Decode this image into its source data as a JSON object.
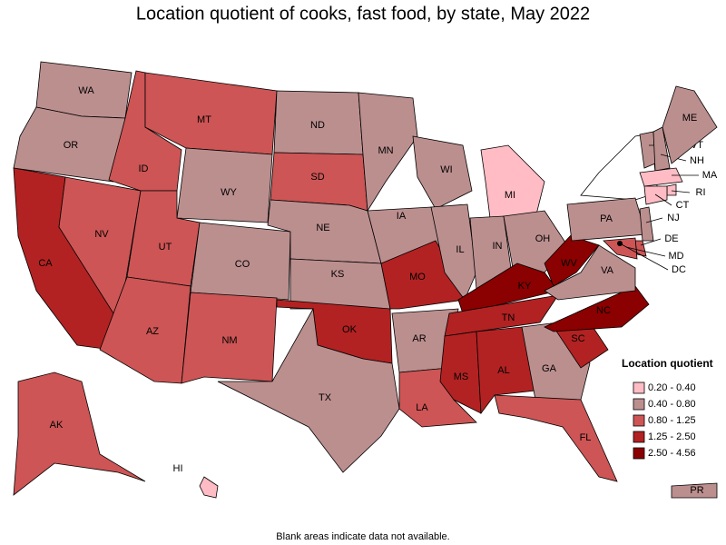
{
  "title": "Location quotient of cooks, fast food, by state, May 2022",
  "note": "Blank areas indicate data not available.",
  "legend": {
    "title": "Location quotient",
    "items": [
      {
        "label": "0.20 - 0.40",
        "color": "#ffbcc4"
      },
      {
        "label": "0.40 - 0.80",
        "color": "#bc8f8f"
      },
      {
        "label": "0.80 - 1.25",
        "color": "#cd5555"
      },
      {
        "label": "1.25 - 2.50",
        "color": "#b22222"
      },
      {
        "label": "2.50 - 4.56",
        "color": "#8b0000"
      }
    ]
  },
  "states": [
    {
      "label": "WA",
      "class": 1
    },
    {
      "label": "OR",
      "class": 1
    },
    {
      "label": "CA",
      "class": 3
    },
    {
      "label": "NV",
      "class": 2
    },
    {
      "label": "ID",
      "class": 2
    },
    {
      "label": "MT",
      "class": 2
    },
    {
      "label": "WY",
      "class": 1
    },
    {
      "label": "UT",
      "class": 2
    },
    {
      "label": "AZ",
      "class": 2
    },
    {
      "label": "CO",
      "class": 1
    },
    {
      "label": "NM",
      "class": 2
    },
    {
      "label": "ND",
      "class": 1
    },
    {
      "label": "SD",
      "class": 2
    },
    {
      "label": "NE",
      "class": 1
    },
    {
      "label": "KS",
      "class": 1
    },
    {
      "label": "OK",
      "class": 3
    },
    {
      "label": "TX",
      "class": 1
    },
    {
      "label": "MN",
      "class": 1
    },
    {
      "label": "IA",
      "class": 1
    },
    {
      "label": "MO",
      "class": 3
    },
    {
      "label": "AR",
      "class": 1
    },
    {
      "label": "LA",
      "class": 2
    },
    {
      "label": "WI",
      "class": 1
    },
    {
      "label": "IL",
      "class": 1
    },
    {
      "label": "MI",
      "class": 0
    },
    {
      "label": "IN",
      "class": 1
    },
    {
      "label": "OH",
      "class": 1
    },
    {
      "label": "KY",
      "class": 4
    },
    {
      "label": "TN",
      "class": 3
    },
    {
      "label": "MS",
      "class": 3
    },
    {
      "label": "AL",
      "class": 3
    },
    {
      "label": "GA",
      "class": 1
    },
    {
      "label": "FL",
      "class": 2
    },
    {
      "label": "SC",
      "class": 3
    },
    {
      "label": "NC",
      "class": 4
    },
    {
      "label": "VA",
      "class": 1
    },
    {
      "label": "WV",
      "class": 4
    },
    {
      "label": "PA",
      "class": 1
    },
    {
      "label": "VT",
      "class": 1
    },
    {
      "label": "NH",
      "class": 1
    },
    {
      "label": "ME",
      "class": 1
    },
    {
      "label": "MA",
      "class": 0
    },
    {
      "label": "RI",
      "class": 0
    },
    {
      "label": "CT",
      "class": 0
    },
    {
      "label": "NJ",
      "class": 1
    },
    {
      "label": "DE",
      "class": 2
    },
    {
      "label": "MD",
      "class": 2
    },
    {
      "label": "DC",
      "class": null
    },
    {
      "label": "AK",
      "class": 2
    },
    {
      "label": "HI",
      "class": 0
    },
    {
      "label": "PR",
      "class": 1
    }
  ]
}
